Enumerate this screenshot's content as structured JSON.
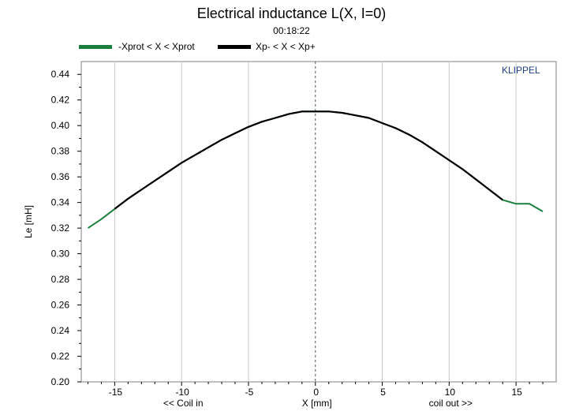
{
  "chart_data": {
    "type": "line",
    "title": "Electrical inductance L(X, I=0)",
    "subtitle": "00:18:22",
    "xlabel": "X [mm]",
    "ylabel": "Le [mH]",
    "x_left_note": "<< Coil in",
    "x_right_note": "coil out >>",
    "brand": "KLIPPEL",
    "xlim": [
      -17.5,
      18.0
    ],
    "ylim": [
      0.2,
      0.45
    ],
    "xticks": [
      -15,
      -10,
      -5,
      0,
      5,
      10,
      15
    ],
    "yticks": [
      0.2,
      0.22,
      0.24,
      0.26,
      0.28,
      0.3,
      0.32,
      0.34,
      0.36,
      0.38,
      0.4,
      0.42,
      0.44
    ],
    "grid": "vertical",
    "legend": [
      {
        "label": "-Xprot < X < Xprot",
        "color": "#1a7f3c"
      },
      {
        "label": "Xp- < X < Xp+",
        "color": "#000000"
      }
    ],
    "series": [
      {
        "name": "-Xprot < X < Xprot",
        "color": "#1a7f3c",
        "x": [
          -17,
          -16,
          -15,
          -14,
          -13,
          -12,
          -11,
          -10,
          -9,
          -8,
          -7,
          -6,
          -5,
          -4,
          -3,
          -2,
          -1,
          0,
          1,
          2,
          3,
          4,
          5,
          6,
          7,
          8,
          9,
          10,
          11,
          12,
          13,
          14,
          15,
          16,
          17
        ],
        "y": [
          0.32,
          0.327,
          0.335,
          0.343,
          0.35,
          0.357,
          0.364,
          0.371,
          0.377,
          0.383,
          0.389,
          0.394,
          0.399,
          0.403,
          0.406,
          0.409,
          0.411,
          0.411,
          0.411,
          0.41,
          0.408,
          0.406,
          0.402,
          0.398,
          0.393,
          0.387,
          0.38,
          0.373,
          0.366,
          0.358,
          0.35,
          0.342,
          0.339,
          0.339,
          0.333
        ]
      },
      {
        "name": "Xp- < X < Xp+",
        "color": "#000000",
        "x": [
          -15,
          -14,
          -13,
          -12,
          -11,
          -10,
          -9,
          -8,
          -7,
          -6,
          -5,
          -4,
          -3,
          -2,
          -1,
          0,
          1,
          2,
          3,
          4,
          5,
          6,
          7,
          8,
          9,
          10,
          11,
          12,
          13,
          14
        ],
        "y": [
          0.335,
          0.343,
          0.35,
          0.357,
          0.364,
          0.371,
          0.377,
          0.383,
          0.389,
          0.394,
          0.399,
          0.403,
          0.406,
          0.409,
          0.411,
          0.411,
          0.411,
          0.41,
          0.408,
          0.406,
          0.402,
          0.398,
          0.393,
          0.387,
          0.38,
          0.373,
          0.366,
          0.358,
          0.35,
          0.342
        ]
      }
    ]
  }
}
